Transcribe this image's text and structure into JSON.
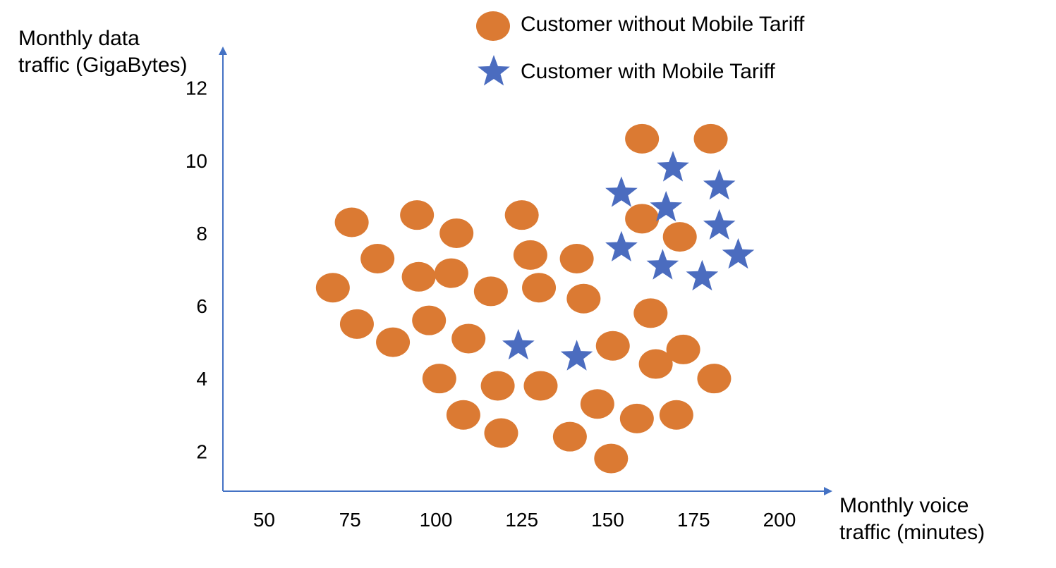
{
  "chart_data": {
    "type": "scatter",
    "xlabel_lines": [
      "Monthly voice",
      "traffic (minutes)"
    ],
    "ylabel_lines": [
      "Monthly data",
      "traffic (GigaBytes)"
    ],
    "x_ticks": [
      50,
      75,
      100,
      125,
      150,
      175,
      200
    ],
    "y_ticks": [
      2,
      4,
      6,
      8,
      10,
      12
    ],
    "xlim": [
      38,
      215
    ],
    "ylim": [
      0.9,
      13.1
    ],
    "grid": false,
    "legend_position": "top",
    "series": [
      {
        "name": "Customer without Mobile Tariff",
        "marker": "circle",
        "color": "#DB7A33",
        "points": [
          [
            75.5,
            8.3
          ],
          [
            83,
            7.3
          ],
          [
            94.5,
            8.5
          ],
          [
            106,
            8.0
          ],
          [
            70,
            6.5
          ],
          [
            77,
            5.5
          ],
          [
            87.5,
            5.0
          ],
          [
            95,
            6.8
          ],
          [
            104.5,
            6.9
          ],
          [
            116,
            6.4
          ],
          [
            98,
            5.6
          ],
          [
            109.5,
            5.1
          ],
          [
            125,
            8.5
          ],
          [
            127.5,
            7.4
          ],
          [
            141,
            7.3
          ],
          [
            130,
            6.5
          ],
          [
            143,
            6.2
          ],
          [
            101,
            4.0
          ],
          [
            118,
            3.8
          ],
          [
            130.5,
            3.8
          ],
          [
            108,
            3.0
          ],
          [
            119,
            2.5
          ],
          [
            139,
            2.4
          ],
          [
            147,
            3.3
          ],
          [
            151,
            1.8
          ],
          [
            151.5,
            4.9
          ],
          [
            158.5,
            2.9
          ],
          [
            162.5,
            5.8
          ],
          [
            164,
            4.4
          ],
          [
            170,
            3.0
          ],
          [
            172,
            4.8
          ],
          [
            181,
            4.0
          ],
          [
            160,
            10.6
          ],
          [
            180,
            10.6
          ],
          [
            160,
            8.4
          ],
          [
            171,
            7.9
          ]
        ]
      },
      {
        "name": "Customer with  Mobile Tariff",
        "marker": "star",
        "color": "#4B6CBF",
        "points": [
          [
            124,
            4.9
          ],
          [
            141,
            4.6
          ],
          [
            154,
            9.1
          ],
          [
            154,
            7.6
          ],
          [
            169,
            9.8
          ],
          [
            167,
            8.7
          ],
          [
            166,
            7.1
          ],
          [
            177.5,
            6.8
          ],
          [
            182.5,
            9.3
          ],
          [
            182.5,
            8.2
          ],
          [
            188,
            7.4
          ]
        ]
      }
    ]
  }
}
